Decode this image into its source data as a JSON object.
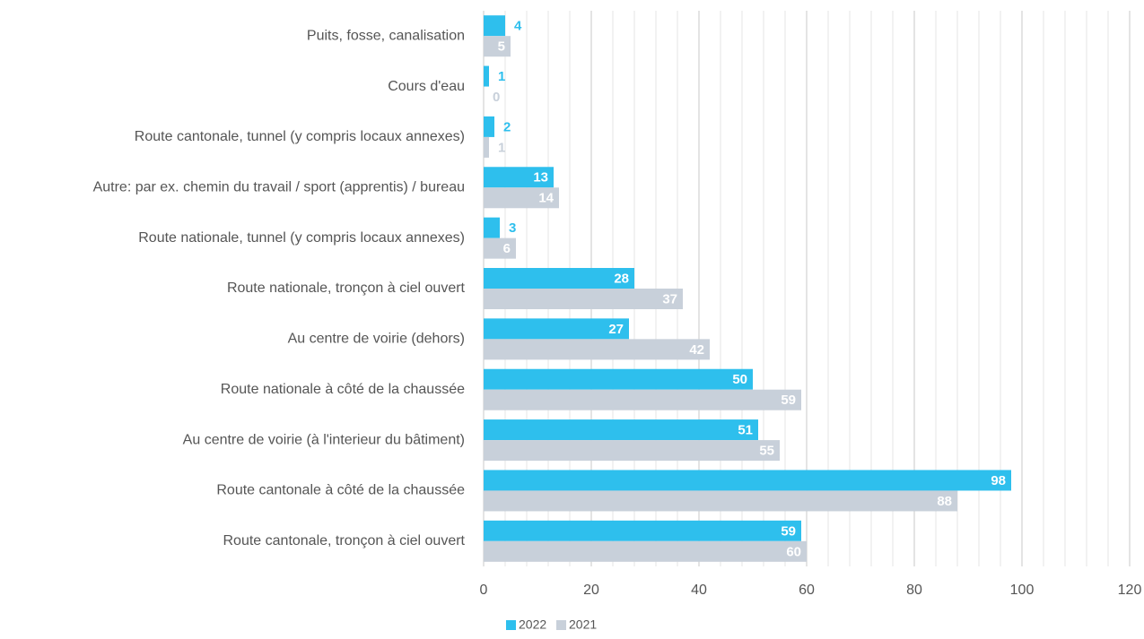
{
  "chart_data": {
    "type": "bar",
    "orientation": "horizontal",
    "categories": [
      "Puits, fosse, canalisation",
      "Cours d'eau",
      "Route cantonale, tunnel (y compris locaux annexes)",
      "Autre: par ex. chemin du travail / sport (apprentis) / bureau",
      "Route nationale, tunnel  (y compris locaux annexes)",
      "Route nationale, tronçon à ciel ouvert",
      "Au centre de voirie (dehors)",
      "Route nationale à côté de la chaussée",
      "Au centre de voirie (à l'interieur du bâtiment)",
      "Route cantonale à côté de la chaussée",
      "Route cantonale, tronçon à ciel ouvert"
    ],
    "series": [
      {
        "name": "2022",
        "color": "#2ebfed",
        "values": [
          4,
          1,
          2,
          13,
          3,
          28,
          27,
          50,
          51,
          98,
          59
        ]
      },
      {
        "name": "2021",
        "color": "#c8d0da",
        "values": [
          5,
          0,
          1,
          14,
          6,
          37,
          42,
          59,
          55,
          88,
          60
        ]
      }
    ],
    "xlim": [
      0,
      120
    ],
    "xticks": [
      0,
      20,
      40,
      60,
      80,
      100,
      120
    ],
    "xticks_minor": [
      4,
      8,
      12,
      16,
      24,
      28,
      32,
      36,
      44,
      48,
      52,
      56,
      64,
      68,
      72,
      76,
      84,
      88,
      92,
      96,
      104,
      108,
      112,
      116
    ],
    "grid": true,
    "legend": "bottom"
  }
}
